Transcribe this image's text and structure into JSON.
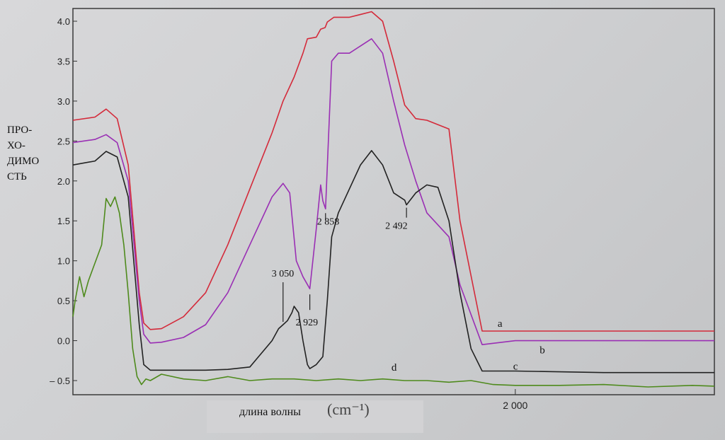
{
  "chart_data": {
    "type": "line",
    "ylabel_lines": [
      "ПРО-",
      "ХО-",
      "ДИМО",
      "СТЬ"
    ],
    "xlabel": "длина волны",
    "xunit": "(cm⁻¹)",
    "x_ticks": [
      {
        "value": 2000,
        "label": "2 000"
      }
    ],
    "y_ticks": [
      {
        "value": 4.0,
        "label": "4.0"
      },
      {
        "value": 3.5,
        "label": "3.5"
      },
      {
        "value": 3.0,
        "label": "3.0"
      },
      {
        "value": 2.5,
        "label": "2.5"
      },
      {
        "value": 2.0,
        "label": "2.0"
      },
      {
        "value": 1.5,
        "label": "1.5"
      },
      {
        "value": 1.0,
        "label": "1.0"
      },
      {
        "value": 0.5,
        "label": "0.5"
      },
      {
        "value": 0.0,
        "label": "0.0"
      },
      {
        "value": -0.5,
        "label": "– 0.5"
      }
    ],
    "ylim": [
      -0.6,
      4.15
    ],
    "xlim": [
      4000,
      1100
    ],
    "grid": false,
    "x_axis_reversed": true,
    "series": [
      {
        "name": "a",
        "color": "#d42a3a",
        "x": [
          4000,
          3900,
          3850,
          3800,
          3750,
          3700,
          3680,
          3650,
          3600,
          3500,
          3400,
          3300,
          3200,
          3100,
          3050,
          3000,
          2960,
          2940,
          2900,
          2880,
          2860,
          2850,
          2820,
          2750,
          2650,
          2600,
          2550,
          2500,
          2450,
          2400,
          2300,
          2250,
          2150,
          2000,
          1600,
          1100
        ],
        "y": [
          2.76,
          2.8,
          2.9,
          2.78,
          2.2,
          0.6,
          0.22,
          0.14,
          0.15,
          0.3,
          0.6,
          1.2,
          1.9,
          2.6,
          3.0,
          3.3,
          3.6,
          3.78,
          3.8,
          3.9,
          3.92,
          3.99,
          4.05,
          4.05,
          4.12,
          4.0,
          3.5,
          2.95,
          2.78,
          2.76,
          2.65,
          1.5,
          0.12,
          0.12,
          0.12,
          0.12
        ]
      },
      {
        "name": "b",
        "color": "#9a2fb4",
        "x": [
          4000,
          3900,
          3850,
          3800,
          3750,
          3700,
          3680,
          3650,
          3600,
          3500,
          3400,
          3300,
          3200,
          3100,
          3050,
          3020,
          2990,
          2960,
          2929,
          2900,
          2880,
          2870,
          2858,
          2830,
          2800,
          2750,
          2650,
          2600,
          2550,
          2500,
          2450,
          2400,
          2300,
          2250,
          2150,
          2000,
          1600,
          1100
        ],
        "y": [
          2.48,
          2.52,
          2.58,
          2.48,
          2.0,
          0.5,
          0.08,
          -0.03,
          -0.02,
          0.04,
          0.2,
          0.6,
          1.2,
          1.8,
          1.97,
          1.85,
          1.0,
          0.8,
          0.65,
          1.4,
          1.95,
          1.75,
          1.65,
          3.5,
          3.6,
          3.6,
          3.78,
          3.6,
          3.0,
          2.45,
          2.0,
          1.6,
          1.3,
          0.7,
          -0.05,
          0.0,
          0.0,
          0.0
        ]
      },
      {
        "name": "c",
        "color": "#222222",
        "x": [
          4000,
          3900,
          3850,
          3800,
          3750,
          3700,
          3680,
          3650,
          3600,
          3500,
          3400,
          3300,
          3200,
          3100,
          3070,
          3050,
          3030,
          3010,
          3000,
          2980,
          2960,
          2940,
          2929,
          2900,
          2870,
          2850,
          2830,
          2800,
          2700,
          2650,
          2600,
          2550,
          2500,
          2492,
          2450,
          2400,
          2350,
          2300,
          2250,
          2200,
          2150,
          2000,
          1600,
          1100
        ],
        "y": [
          2.2,
          2.25,
          2.37,
          2.3,
          1.8,
          0.2,
          -0.3,
          -0.37,
          -0.37,
          -0.37,
          -0.37,
          -0.36,
          -0.33,
          0.0,
          0.15,
          0.2,
          0.25,
          0.35,
          0.43,
          0.35,
          0.0,
          -0.3,
          -0.35,
          -0.3,
          -0.2,
          0.5,
          1.3,
          1.6,
          2.2,
          2.38,
          2.2,
          1.85,
          1.76,
          1.7,
          1.85,
          1.95,
          1.92,
          1.5,
          0.6,
          -0.1,
          -0.38,
          -0.38,
          -0.4,
          -0.4
        ]
      },
      {
        "name": "d",
        "color": "#4e8a1c",
        "x": [
          4000,
          3990,
          3970,
          3950,
          3930,
          3910,
          3890,
          3870,
          3850,
          3830,
          3810,
          3790,
          3770,
          3750,
          3730,
          3710,
          3690,
          3670,
          3650,
          3600,
          3500,
          3400,
          3300,
          3200,
          3100,
          3000,
          2900,
          2800,
          2700,
          2600,
          2500,
          2400,
          2300,
          2200,
          2100,
          2000,
          1800,
          1600,
          1400,
          1200,
          1100
        ],
        "y": [
          0.3,
          0.5,
          0.8,
          0.55,
          0.75,
          0.9,
          1.05,
          1.2,
          1.78,
          1.68,
          1.8,
          1.6,
          1.2,
          0.6,
          -0.1,
          -0.45,
          -0.55,
          -0.48,
          -0.5,
          -0.42,
          -0.48,
          -0.5,
          -0.45,
          -0.5,
          -0.48,
          -0.48,
          -0.5,
          -0.48,
          -0.5,
          -0.48,
          -0.5,
          -0.5,
          -0.52,
          -0.5,
          -0.55,
          -0.56,
          -0.56,
          -0.55,
          -0.58,
          -0.56,
          -0.57
        ]
      }
    ],
    "annotations": [
      {
        "text": "3 050",
        "x": 3050,
        "y": 0.2
      },
      {
        "text": "2 929",
        "x": 2929,
        "y": 0.65
      },
      {
        "text": "2 858",
        "x": 2858,
        "y": 1.65
      },
      {
        "text": "2 492",
        "x": 2492,
        "y": 1.7
      }
    ],
    "series_labels": [
      {
        "text": "a",
        "series": "a"
      },
      {
        "text": "b",
        "series": "b"
      },
      {
        "text": "c",
        "series": "c"
      },
      {
        "text": "d",
        "series": "d"
      }
    ]
  }
}
